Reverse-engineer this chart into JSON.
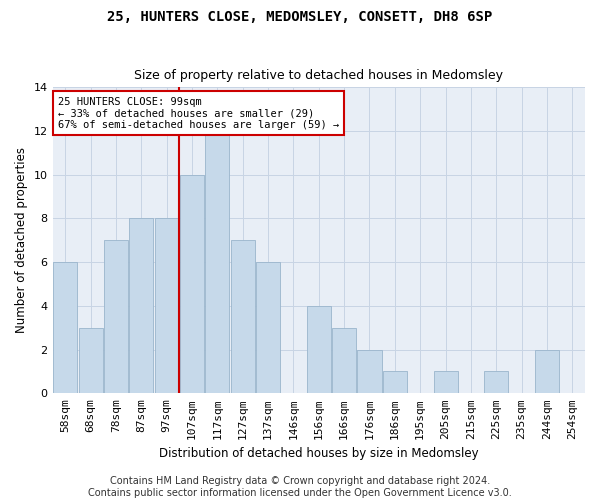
{
  "title": "25, HUNTERS CLOSE, MEDOMSLEY, CONSETT, DH8 6SP",
  "subtitle": "Size of property relative to detached houses in Medomsley",
  "xlabel": "Distribution of detached houses by size in Medomsley",
  "ylabel": "Number of detached properties",
  "bar_labels": [
    "58sqm",
    "68sqm",
    "78sqm",
    "87sqm",
    "97sqm",
    "107sqm",
    "117sqm",
    "127sqm",
    "137sqm",
    "146sqm",
    "156sqm",
    "166sqm",
    "176sqm",
    "186sqm",
    "195sqm",
    "205sqm",
    "215sqm",
    "225sqm",
    "235sqm",
    "244sqm",
    "254sqm"
  ],
  "bar_values": [
    6,
    3,
    7,
    8,
    8,
    10,
    12,
    7,
    6,
    0,
    4,
    3,
    2,
    1,
    0,
    1,
    0,
    1,
    0,
    2,
    0
  ],
  "bar_color": "#c6d9ea",
  "bar_edgecolor": "#9ab5cc",
  "vline_index": 4.5,
  "vline_color": "#cc0000",
  "annotation_text": "25 HUNTERS CLOSE: 99sqm\n← 33% of detached houses are smaller (29)\n67% of semi-detached houses are larger (59) →",
  "annotation_box_color": "#cc0000",
  "ylim": [
    0,
    14
  ],
  "yticks": [
    0,
    2,
    4,
    6,
    8,
    10,
    12,
    14
  ],
  "grid_color": "#c8d4e4",
  "background_color": "#e8eef6",
  "footer_text": "Contains HM Land Registry data © Crown copyright and database right 2024.\nContains public sector information licensed under the Open Government Licence v3.0.",
  "title_fontsize": 10,
  "subtitle_fontsize": 9,
  "xlabel_fontsize": 8.5,
  "ylabel_fontsize": 8.5,
  "tick_fontsize": 8,
  "footer_fontsize": 7,
  "annotation_fontsize": 7.5
}
